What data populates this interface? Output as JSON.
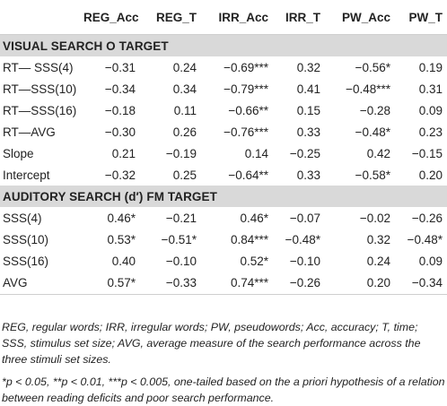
{
  "table": {
    "columns": [
      "",
      "REG_Acc",
      "REG_T",
      "IRR_Acc",
      "IRR_T",
      "PW_Acc",
      "PW_T"
    ],
    "sections": [
      {
        "title": "VISUAL SEARCH O TARGET",
        "rows": [
          {
            "label": "RT— SSS(4)",
            "cells": [
              "−0.31",
              "0.24",
              "−0.69***",
              "0.32",
              "−0.56*",
              "0.19"
            ]
          },
          {
            "label": "RT—SSS(10)",
            "cells": [
              "−0.34",
              "0.34",
              "−0.79***",
              "0.41",
              "−0.48***",
              "0.31"
            ]
          },
          {
            "label": "RT—SSS(16)",
            "cells": [
              "−0.18",
              "0.11",
              "−0.66**",
              "0.15",
              "−0.28",
              "0.09"
            ]
          },
          {
            "label": "RT—AVG",
            "cells": [
              "−0.30",
              "0.26",
              "−0.76***",
              "0.33",
              "−0.48*",
              "0.23"
            ]
          },
          {
            "label": "Slope",
            "cells": [
              "0.21",
              "−0.19",
              "0.14",
              "−0.25",
              "0.42",
              "−0.15"
            ]
          },
          {
            "label": "Intercept",
            "cells": [
              "−0.32",
              "0.25",
              "−0.64**",
              "0.33",
              "−0.58*",
              "0.20"
            ]
          }
        ]
      },
      {
        "title": "AUDITORY SEARCH (d′) FM TARGET",
        "rows": [
          {
            "label": "SSS(4)",
            "cells": [
              "0.46*",
              "−0.21",
              "0.46*",
              "−0.07",
              "−0.02",
              "−0.26"
            ]
          },
          {
            "label": "SSS(10)",
            "cells": [
              "0.53*",
              "−0.51*",
              "0.84***",
              "−0.48*",
              "0.32",
              "−0.48*"
            ]
          },
          {
            "label": "SSS(16)",
            "cells": [
              "0.40",
              "−0.10",
              "0.52*",
              "−0.10",
              "0.24",
              "0.09"
            ]
          },
          {
            "label": "AVG",
            "cells": [
              "0.57*",
              "−0.33",
              "0.74***",
              "−0.26",
              "0.20",
              "−0.34"
            ]
          }
        ]
      }
    ]
  },
  "notes": {
    "abbreviations": "REG, regular words; IRR, irregular words; PW, pseudowords; Acc, accuracy; T, time; SSS, stimulus set size; AVG, average measure of the search performance across the three stimuli set sizes.",
    "significance": "*p < 0.05, **p < 0.01, ***p < 0.005, one-tailed based on the a priori hypothesis of a relation between reading deficits and poor search performance."
  }
}
